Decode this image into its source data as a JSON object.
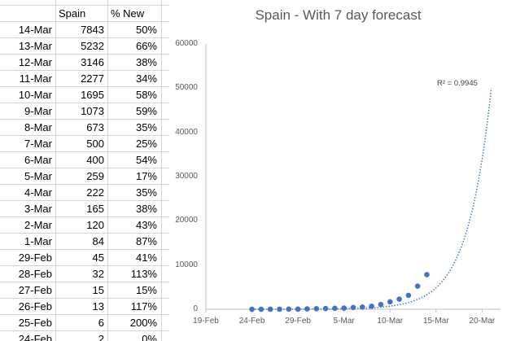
{
  "sheet": {
    "headers": [
      "",
      "Spain",
      "% New"
    ],
    "rows": [
      {
        "date": "14-Mar",
        "spain": "7843",
        "pct": "50%"
      },
      {
        "date": "13-Mar",
        "spain": "5232",
        "pct": "66%"
      },
      {
        "date": "12-Mar",
        "spain": "3146",
        "pct": "38%"
      },
      {
        "date": "11-Mar",
        "spain": "2277",
        "pct": "34%"
      },
      {
        "date": "10-Mar",
        "spain": "1695",
        "pct": "58%"
      },
      {
        "date": "9-Mar",
        "spain": "1073",
        "pct": "59%"
      },
      {
        "date": "8-Mar",
        "spain": "673",
        "pct": "35%"
      },
      {
        "date": "7-Mar",
        "spain": "500",
        "pct": "25%"
      },
      {
        "date": "6-Mar",
        "spain": "400",
        "pct": "54%"
      },
      {
        "date": "5-Mar",
        "spain": "259",
        "pct": "17%"
      },
      {
        "date": "4-Mar",
        "spain": "222",
        "pct": "35%"
      },
      {
        "date": "3-Mar",
        "spain": "165",
        "pct": "38%"
      },
      {
        "date": "2-Mar",
        "spain": "120",
        "pct": "43%"
      },
      {
        "date": "1-Mar",
        "spain": "84",
        "pct": "87%"
      },
      {
        "date": "29-Feb",
        "spain": "45",
        "pct": "41%"
      },
      {
        "date": "28-Feb",
        "spain": "32",
        "pct": "113%"
      },
      {
        "date": "27-Feb",
        "spain": "15",
        "pct": "15%"
      },
      {
        "date": "26-Feb",
        "spain": "13",
        "pct": "117%"
      },
      {
        "date": "25-Feb",
        "spain": "6",
        "pct": "200%"
      },
      {
        "date": "24-Feb",
        "spain": "2",
        "pct": "0%"
      }
    ]
  },
  "chart_data": {
    "type": "scatter",
    "title": "Spain - With 7 day forecast",
    "xlabel": "",
    "ylabel": "",
    "y_ticks": [
      "0",
      "10000",
      "20000",
      "30000",
      "40000",
      "50000",
      "60000"
    ],
    "ylim": [
      0,
      60000
    ],
    "x_ticks": [
      "19-Feb",
      "24-Feb",
      "29-Feb",
      "5-Mar",
      "10-Mar",
      "15-Mar",
      "20-Mar"
    ],
    "xlim": [
      "2020-02-19",
      "2020-03-22"
    ],
    "points": [
      {
        "x": "2020-02-24",
        "y": 2
      },
      {
        "x": "2020-02-25",
        "y": 6
      },
      {
        "x": "2020-02-26",
        "y": 13
      },
      {
        "x": "2020-02-27",
        "y": 15
      },
      {
        "x": "2020-02-28",
        "y": 32
      },
      {
        "x": "2020-02-29",
        "y": 45
      },
      {
        "x": "2020-03-01",
        "y": 84
      },
      {
        "x": "2020-03-02",
        "y": 120
      },
      {
        "x": "2020-03-03",
        "y": 165
      },
      {
        "x": "2020-03-04",
        "y": 222
      },
      {
        "x": "2020-03-05",
        "y": 259
      },
      {
        "x": "2020-03-06",
        "y": 400
      },
      {
        "x": "2020-03-07",
        "y": 500
      },
      {
        "x": "2020-03-08",
        "y": 673
      },
      {
        "x": "2020-03-09",
        "y": 1073
      },
      {
        "x": "2020-03-10",
        "y": 1695
      },
      {
        "x": "2020-03-11",
        "y": 2277
      },
      {
        "x": "2020-03-12",
        "y": 3146
      },
      {
        "x": "2020-03-13",
        "y": 5232
      },
      {
        "x": "2020-03-14",
        "y": 7843
      }
    ],
    "trendline": {
      "type": "exponential",
      "style": "dotted",
      "forecast_end": "2020-03-21",
      "end_value": 50000
    },
    "annotation": "R² = 0.9945",
    "grid": false,
    "colors": {
      "marker": "#4472c4",
      "axis": "#bfbfbf",
      "text": "#595959"
    }
  }
}
